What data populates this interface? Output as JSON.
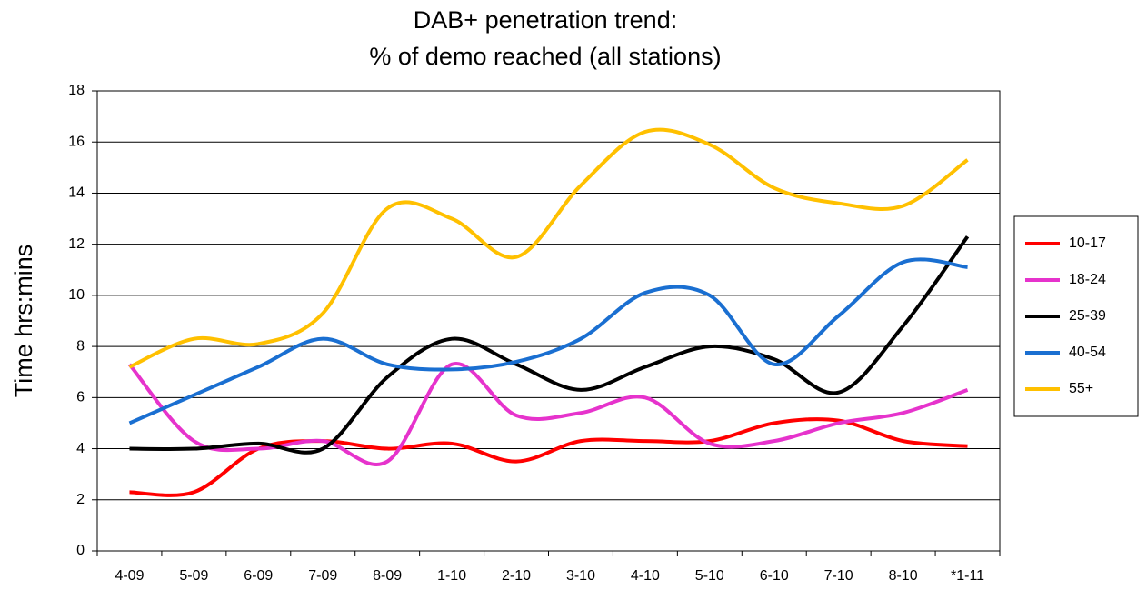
{
  "chart_data": {
    "type": "line",
    "title": [
      "DAB+ penetration trend:",
      "% of demo reached (all stations)"
    ],
    "y_label": "Time hrs:mins",
    "categories": [
      "4-09",
      "5-09",
      "6-09",
      "7-09",
      "8-09",
      "1-10",
      "2-10",
      "3-10",
      "4-10",
      "5-10",
      "6-10",
      "7-10",
      "8-10",
      "*1-11"
    ],
    "series": [
      {
        "name": "10-17",
        "color": "#ff0000",
        "values": [
          2.3,
          2.3,
          4.0,
          4.3,
          4.0,
          4.2,
          3.5,
          4.3,
          4.3,
          4.3,
          5.0,
          5.1,
          4.3,
          4.1
        ]
      },
      {
        "name": "18-24",
        "color": "#e633cc",
        "values": [
          7.3,
          4.3,
          4.0,
          4.3,
          3.5,
          7.3,
          5.3,
          5.4,
          6.0,
          4.2,
          4.3,
          5.0,
          5.4,
          6.3
        ]
      },
      {
        "name": "25-39",
        "color": "#000000",
        "values": [
          4.0,
          4.0,
          4.2,
          4.0,
          6.8,
          8.3,
          7.3,
          6.3,
          7.2,
          8.0,
          7.5,
          6.2,
          8.8,
          12.3
        ]
      },
      {
        "name": "40-54",
        "color": "#1a6fd1",
        "values": [
          5.0,
          6.1,
          7.2,
          8.3,
          7.3,
          7.1,
          7.4,
          8.3,
          10.1,
          10.0,
          7.3,
          9.2,
          11.3,
          11.1
        ]
      },
      {
        "name": "55+",
        "color": "#ffc000",
        "values": [
          7.2,
          8.3,
          8.1,
          9.3,
          13.4,
          13.0,
          11.5,
          14.3,
          16.4,
          15.9,
          14.2,
          13.6,
          13.5,
          15.3
        ]
      }
    ],
    "ylim": [
      0,
      18
    ],
    "yticks": [
      0,
      2,
      4,
      6,
      8,
      10,
      12,
      14,
      16,
      18
    ],
    "grid": true,
    "legend": "right"
  }
}
